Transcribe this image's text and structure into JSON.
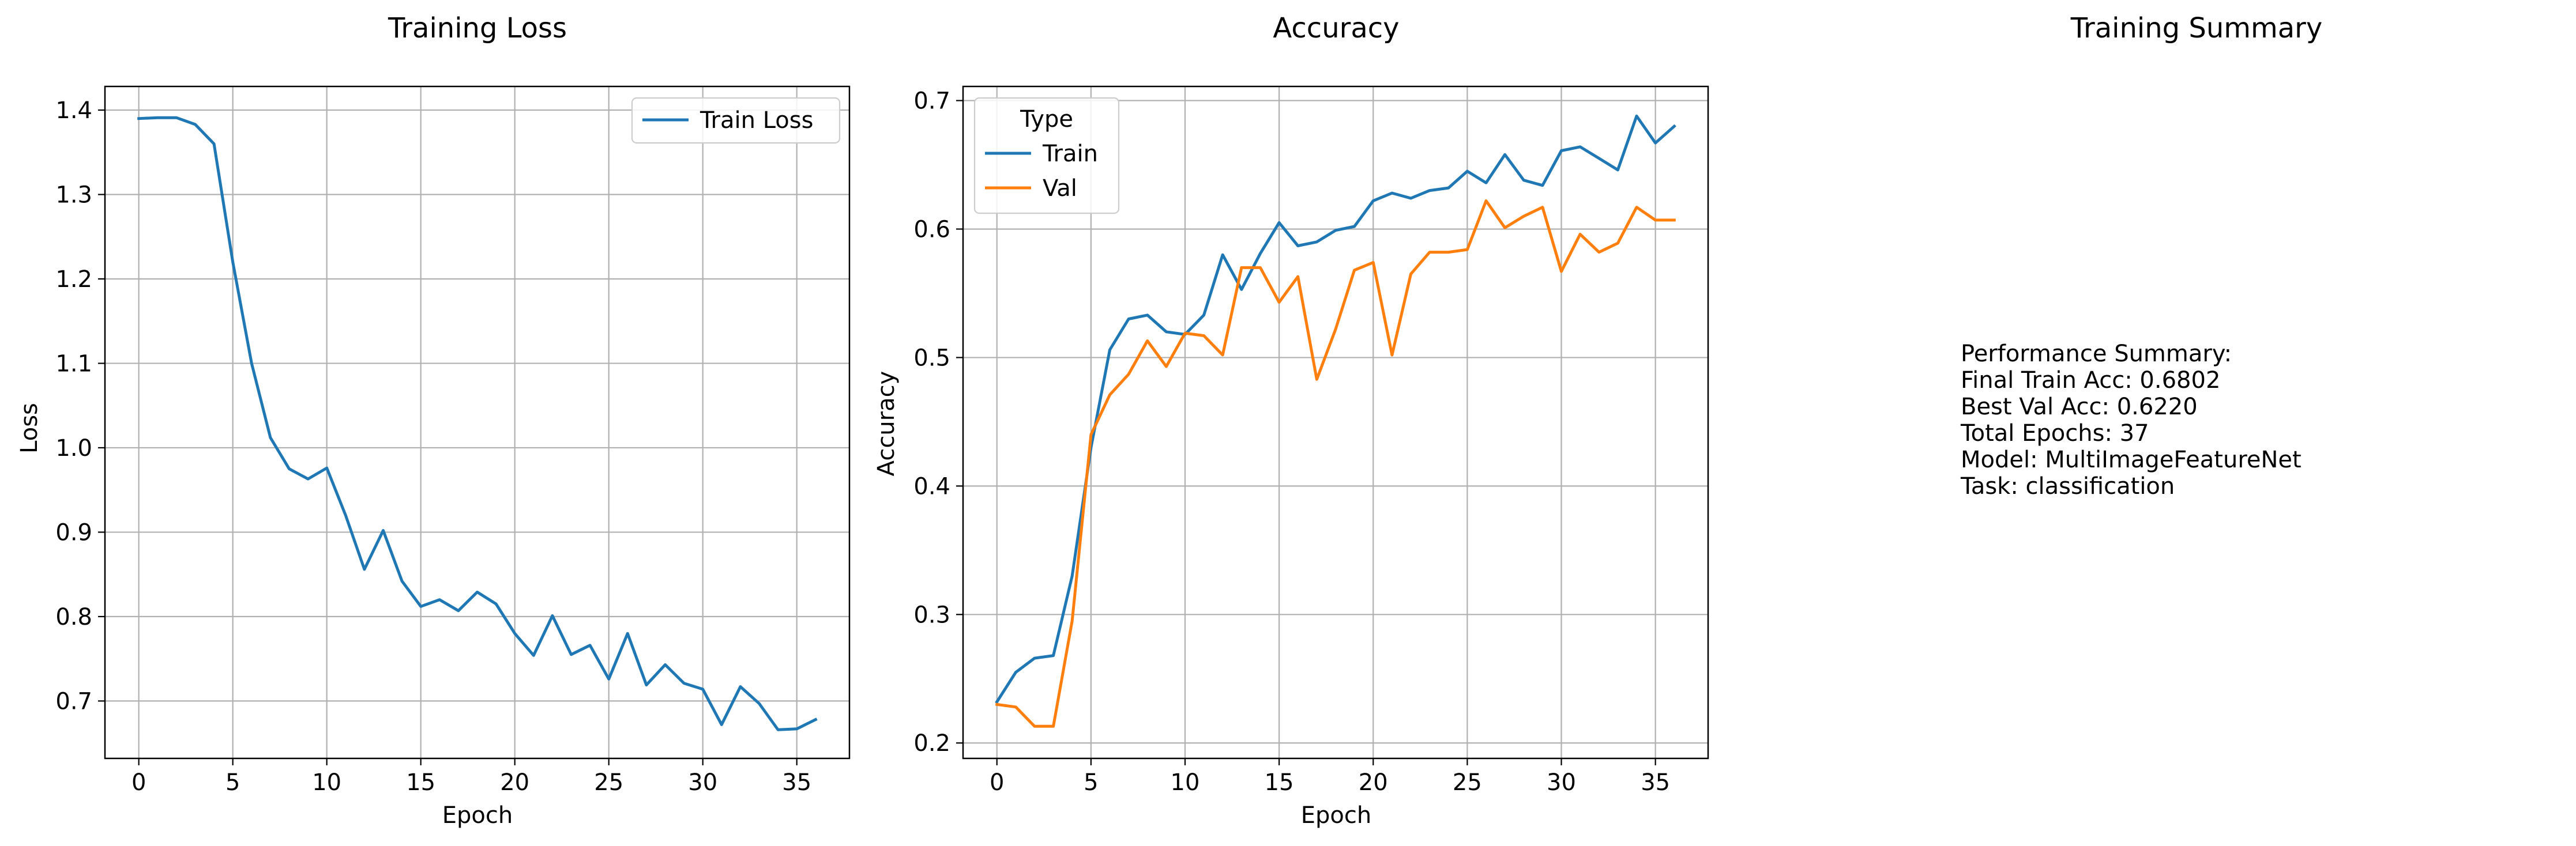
{
  "chart_data": [
    {
      "type": "line",
      "title": "Training Loss",
      "xlabel": "Epoch",
      "ylabel": "Loss",
      "xlim": [
        -1.8,
        37.8
      ],
      "ylim": [
        0.632,
        1.428
      ],
      "xticks": [
        0,
        5,
        10,
        15,
        20,
        25,
        30,
        35
      ],
      "yticks": [
        0.7,
        0.8,
        0.9,
        1.0,
        1.1,
        1.2,
        1.3,
        1.4
      ],
      "ytick_labels": [
        "0.7",
        "0.8",
        "0.9",
        "1.0",
        "1.1",
        "1.2",
        "1.3",
        "1.4"
      ],
      "grid": true,
      "legend": {
        "placement": "upper-right",
        "title": ""
      },
      "x": [
        0,
        1,
        2,
        3,
        4,
        5,
        6,
        7,
        8,
        9,
        10,
        11,
        12,
        13,
        14,
        15,
        16,
        17,
        18,
        19,
        20,
        21,
        22,
        23,
        24,
        25,
        26,
        27,
        28,
        29,
        30,
        31,
        32,
        33,
        34,
        35,
        36
      ],
      "series": [
        {
          "name": "Train Loss",
          "color": "#1f77b4",
          "values": [
            1.39,
            1.391,
            1.391,
            1.383,
            1.36,
            1.22,
            1.1,
            1.012,
            0.975,
            0.963,
            0.976,
            0.92,
            0.856,
            0.902,
            0.842,
            0.812,
            0.82,
            0.807,
            0.829,
            0.815,
            0.78,
            0.754,
            0.801,
            0.755,
            0.766,
            0.726,
            0.78,
            0.719,
            0.743,
            0.721,
            0.714,
            0.672,
            0.717,
            0.697,
            0.666,
            0.667,
            0.678
          ]
        }
      ]
    },
    {
      "type": "line",
      "title": "Accuracy",
      "xlabel": "Epoch",
      "ylabel": "Accuracy",
      "xlim": [
        -1.8,
        37.8
      ],
      "ylim": [
        0.188,
        0.711
      ],
      "xticks": [
        0,
        5,
        10,
        15,
        20,
        25,
        30,
        35
      ],
      "yticks": [
        0.2,
        0.3,
        0.4,
        0.5,
        0.6,
        0.7
      ],
      "ytick_labels": [
        "0.2",
        "0.3",
        "0.4",
        "0.5",
        "0.6",
        "0.7"
      ],
      "grid": true,
      "legend": {
        "placement": "upper-left",
        "title": "Type"
      },
      "x": [
        0,
        1,
        2,
        3,
        4,
        5,
        6,
        7,
        8,
        9,
        10,
        11,
        12,
        13,
        14,
        15,
        16,
        17,
        18,
        19,
        20,
        21,
        22,
        23,
        24,
        25,
        26,
        27,
        28,
        29,
        30,
        31,
        32,
        33,
        34,
        35,
        36
      ],
      "series": [
        {
          "name": "Train",
          "color": "#1f77b4",
          "values": [
            0.232,
            0.255,
            0.266,
            0.268,
            0.33,
            0.43,
            0.506,
            0.53,
            0.533,
            0.52,
            0.518,
            0.533,
            0.58,
            0.553,
            0.581,
            0.605,
            0.587,
            0.59,
            0.599,
            0.602,
            0.622,
            0.628,
            0.624,
            0.63,
            0.632,
            0.645,
            0.636,
            0.658,
            0.638,
            0.634,
            0.661,
            0.664,
            0.655,
            0.646,
            0.688,
            0.667,
            0.68
          ]
        },
        {
          "name": "Val",
          "color": "#ff7f0e",
          "values": [
            0.23,
            0.228,
            0.213,
            0.213,
            0.295,
            0.44,
            0.471,
            0.487,
            0.513,
            0.493,
            0.519,
            0.517,
            0.502,
            0.57,
            0.57,
            0.543,
            0.563,
            0.483,
            0.522,
            0.568,
            0.574,
            0.502,
            0.565,
            0.582,
            0.582,
            0.584,
            0.622,
            0.601,
            0.61,
            0.617,
            0.567,
            0.596,
            0.582,
            0.589,
            0.617,
            0.607,
            0.607
          ]
        }
      ]
    }
  ],
  "summary": {
    "title": "Training Summary",
    "lines": [
      "Performance Summary:",
      "Final Train Acc: 0.6802",
      "Best Val Acc: 0.6220",
      "Total Epochs: 37",
      "Model: MultiImageFeatureNet",
      "Task: classification"
    ]
  }
}
